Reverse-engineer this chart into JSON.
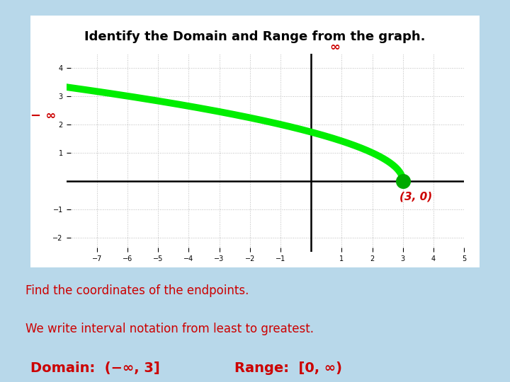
{
  "title": "Identify the Domain and Range from the graph.",
  "title_fontsize": 13,
  "title_fontweight": "bold",
  "bg_outer": "#b8d8ea",
  "bg_inner": "#ffffff",
  "curve_color": "#00ee00",
  "curve_linewidth": 7,
  "endpoint_x": 3,
  "endpoint_y": 0,
  "endpoint_color": "#00aa00",
  "endpoint_size": 200,
  "axis_label_inf": "∞",
  "axis_label_neg_inf": "− ∞",
  "label_color": "#cc0000",
  "grid_color": "#bbbbbb",
  "xlim": [
    -8,
    5
  ],
  "ylim": [
    -2.5,
    4.5
  ],
  "xticks": [
    -7,
    -6,
    -5,
    -4,
    -3,
    -2,
    -1,
    1,
    2,
    3,
    4,
    5
  ],
  "yticks": [
    -2,
    -1,
    1,
    2,
    3,
    4
  ],
  "annotation_point": "(3, 0)",
  "text_line1": "Find the coordinates of the endpoints.",
  "text_line2": "We write interval notation from least to greatest.",
  "text_domain": "Domain:  (−∞, 3]",
  "text_range": "Range:  [0, ∞)",
  "text_color_body": "#cc0000",
  "text_fontsize_body": 12,
  "text_fontsize_domain": 13
}
